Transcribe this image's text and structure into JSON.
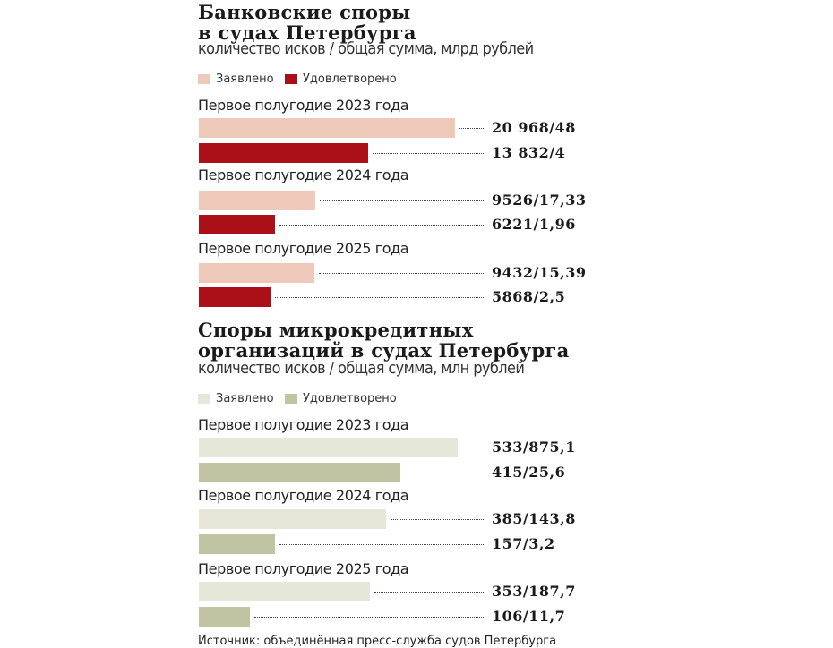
{
  "chart_data": [
    {
      "type": "bar",
      "title": [
        "Банковские споры",
        "в судах Петербурга"
      ],
      "subtitle": "количество исков / общая сумма, млрд рублей",
      "legend": [
        {
          "label": "Заявлено",
          "color": "#eec8b8"
        },
        {
          "label": "Удовлетворено",
          "color": "#ab1019"
        }
      ],
      "categories": [
        "Первое полугодие 2023 года",
        "Первое полугодие 2024 года",
        "Первое полугодие 2025 года"
      ],
      "series": [
        {
          "name": "Заявлено",
          "counts": [
            20968,
            9526,
            9432
          ],
          "sums": [
            48,
            17.33,
            15.39
          ],
          "labels": [
            "20 968/48",
            "9526/17,33",
            "9432/15,39"
          ]
        },
        {
          "name": "Удовлетворено",
          "counts": [
            13832,
            6221,
            5868
          ],
          "sums": [
            4,
            1.96,
            2.5
          ],
          "labels": [
            "13 832/4",
            "6221/1,96",
            "5868/2,5"
          ]
        }
      ]
    },
    {
      "type": "bar",
      "title": [
        "Споры микрокредитных",
        "организаций в судах Петербурга"
      ],
      "subtitle": "количество исков / общая сумма, млн рублей",
      "legend": [
        {
          "label": "Заявлено",
          "color": "#e6e7d8"
        },
        {
          "label": "Удовлетворено",
          "color": "#c0c4a2"
        }
      ],
      "categories": [
        "Первое полугодие 2023 года",
        "Первое полугодие 2024 года",
        "Первое полугодие 2025 года"
      ],
      "series": [
        {
          "name": "Заявлено",
          "counts": [
            533,
            385,
            353
          ],
          "sums": [
            875.1,
            143.8,
            187.7
          ],
          "labels": [
            "533/875,1",
            "385/143,8",
            "353/187,7"
          ]
        },
        {
          "name": "Удовлетворено",
          "counts": [
            415,
            157,
            106
          ],
          "sums": [
            25.6,
            3.2,
            11.7
          ],
          "labels": [
            "415/25,6",
            "157/3,2",
            "106/11,7"
          ]
        }
      ]
    }
  ],
  "source": "Источник: объединённая пресс-служба судов Петербурга"
}
